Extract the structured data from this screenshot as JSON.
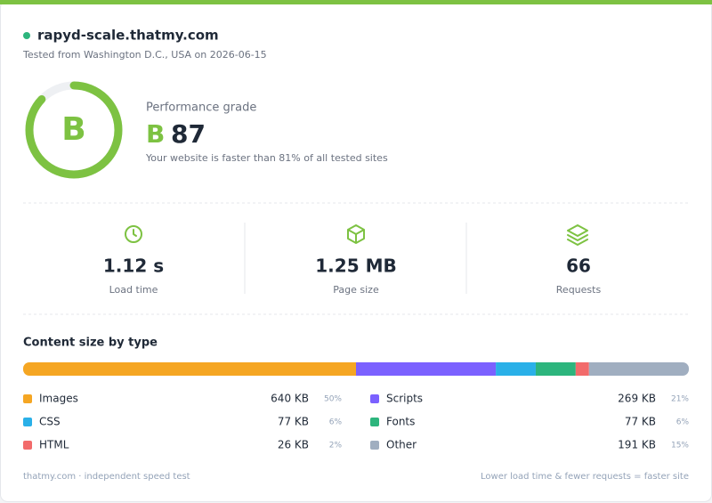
{
  "header": {
    "site": "rapyd-scale.thatmy.com",
    "tested": "Tested from Washington D.C., USA on 2026-06-15"
  },
  "grade": {
    "label": "Performance grade",
    "letter": "B",
    "score": 87,
    "color": "#7dc242",
    "summary": "Your website is faster than 81% of all tested sites"
  },
  "metrics": [
    {
      "value": "1.12 s",
      "label": "Load time"
    },
    {
      "value": "1.25 MB",
      "label": "Page size"
    },
    {
      "value": "66",
      "label": "Requests"
    }
  ],
  "content": {
    "title": "Content size by type",
    "items": [
      {
        "name": "Images",
        "size": "640 KB",
        "percent": {
          "value": 50,
          "label": "50%"
        },
        "color": "#f5a623"
      },
      {
        "name": "Scripts",
        "size": "269 KB",
        "percent": {
          "value": 21,
          "label": "21%"
        },
        "color": "#7b61ff"
      },
      {
        "name": "CSS",
        "size": "77 KB",
        "percent": {
          "value": 6,
          "label": "6%"
        },
        "color": "#2ab0e8"
      },
      {
        "name": "Fonts",
        "size": "77 KB",
        "percent": {
          "value": 6,
          "label": "6%"
        },
        "color": "#2db57d"
      },
      {
        "name": "HTML",
        "size": "26 KB",
        "percent": {
          "value": 2,
          "label": "2%"
        },
        "color": "#f26b6b"
      },
      {
        "name": "Other",
        "size": "191 KB",
        "percent": {
          "value": 15,
          "label": "15%"
        },
        "color": "#a0aec0"
      }
    ]
  },
  "footer": {
    "left": "thatmy.com · independent speed test",
    "right": "Lower load time & fewer requests = faster site"
  }
}
